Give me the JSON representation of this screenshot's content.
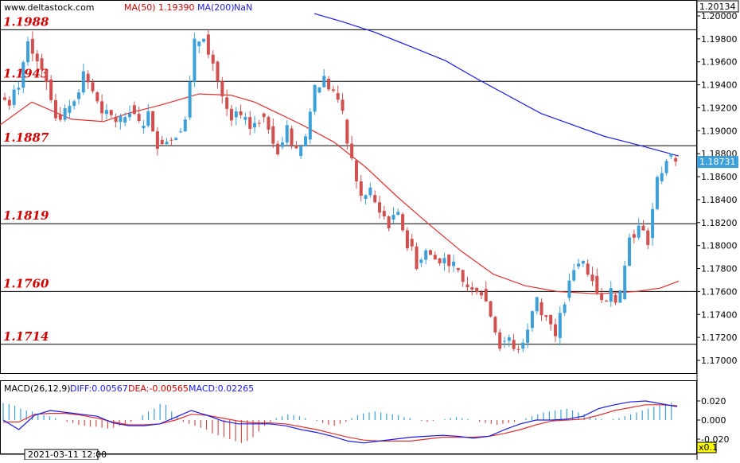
{
  "header": {
    "site": "www.deltastock.com",
    "ma50_label": "MA(50)",
    "ma50_value": "1.19390",
    "ma200_label": "MA(200)",
    "ma200_value": "NaN"
  },
  "price_panel": {
    "top_label": "1.20134",
    "last_price_label": "1.18731",
    "colors": {
      "up": "#3da0d8",
      "down": "#d05050",
      "ma50": "#e03030",
      "ma200": "#1a1aee",
      "level_line": "#000000",
      "level_text": "#d40000"
    }
  },
  "macd_panel": {
    "title": "MACD(26,12,9)",
    "diff_label": "DIFF:0.00567",
    "dea_label": "DEA:-0.00565",
    "macd_label": "MACD:0.02265",
    "corner_label": "x0.1"
  },
  "footer": {
    "date_label": "2021-03-11 12:00"
  },
  "chart_data": [
    {
      "type": "candlestick",
      "title": "",
      "ylim": [
        1.169,
        1.2013
      ],
      "y_ticks": [
        "1.20000",
        "1.19800",
        "1.19600",
        "1.19400",
        "1.19200",
        "1.19000",
        "1.18800",
        "1.18600",
        "1.18400",
        "1.18200",
        "1.18000",
        "1.17800",
        "1.17600",
        "1.17400",
        "1.17200",
        "1.17000"
      ],
      "levels": [
        {
          "label": "1.1988",
          "value": 1.1988
        },
        {
          "label": "1.1943",
          "value": 1.1943
        },
        {
          "label": "1.1887",
          "value": 1.1887
        },
        {
          "label": "1.1819",
          "value": 1.1819
        },
        {
          "label": "1.1760",
          "value": 1.176
        },
        {
          "label": "1.1714",
          "value": 1.1714
        }
      ],
      "last_price": 1.18731,
      "path_close": [
        1.1925,
        1.194,
        1.1982,
        1.1965,
        1.1945,
        1.1915,
        1.1915,
        1.193,
        1.195,
        1.1935,
        1.1912,
        1.1913,
        1.191,
        1.192,
        1.1905,
        1.1915,
        1.189,
        1.1893,
        1.1898,
        1.191,
        1.1975,
        1.1985,
        1.196,
        1.1928,
        1.191,
        1.1912,
        1.1903,
        1.1912,
        1.1905,
        1.1885,
        1.19,
        1.188,
        1.1895,
        1.1935,
        1.1945,
        1.1932,
        1.1912,
        1.1875,
        1.1842,
        1.1845,
        1.183,
        1.182,
        1.1825,
        1.1803,
        1.1785,
        1.1795,
        1.1788,
        1.179,
        1.178,
        1.1767,
        1.1766,
        1.1762,
        1.174,
        1.1715,
        1.1718,
        1.1708,
        1.173,
        1.1752,
        1.174,
        1.1722,
        1.1752,
        1.178,
        1.1785,
        1.1775,
        1.175,
        1.176,
        1.1755,
        1.181,
        1.1815,
        1.1805,
        1.1855,
        1.1875,
        1.1872
      ],
      "ma50": [
        [
          0,
          1.1905
        ],
        [
          40,
          1.1925
        ],
        [
          90,
          1.191
        ],
        [
          130,
          1.1908
        ],
        [
          160,
          1.1915
        ],
        [
          200,
          1.1922
        ],
        [
          250,
          1.1932
        ],
        [
          290,
          1.1931
        ],
        [
          320,
          1.1925
        ],
        [
          350,
          1.1915
        ],
        [
          380,
          1.1905
        ],
        [
          420,
          1.189
        ],
        [
          460,
          1.1868
        ],
        [
          500,
          1.1842
        ],
        [
          540,
          1.1818
        ],
        [
          580,
          1.1795
        ],
        [
          620,
          1.1775
        ],
        [
          660,
          1.1765
        ],
        [
          700,
          1.176
        ],
        [
          750,
          1.1758
        ],
        [
          800,
          1.176
        ],
        [
          830,
          1.1763
        ],
        [
          853,
          1.1769
        ]
      ],
      "ma200": [
        [
          395,
          1.2002
        ],
        [
          430,
          1.1995
        ],
        [
          470,
          1.1986
        ],
        [
          510,
          1.1975
        ],
        [
          560,
          1.1961
        ],
        [
          600,
          1.1945
        ],
        [
          640,
          1.193
        ],
        [
          680,
          1.1915
        ],
        [
          720,
          1.1905
        ],
        [
          760,
          1.1895
        ],
        [
          800,
          1.1888
        ],
        [
          853,
          1.1878
        ]
      ]
    },
    {
      "type": "macd",
      "title": "MACD(26,12,9)",
      "ylim": [
        -0.03,
        0.035
      ],
      "y_ticks": [
        "0.020",
        "0.000",
        "-0.020"
      ],
      "diff": [
        0,
        -10,
        5,
        10,
        8,
        6,
        4,
        -3,
        -6,
        -6,
        -4,
        3,
        10,
        5,
        -1,
        -4,
        -4,
        -4,
        -6,
        -10,
        -13,
        -17,
        -22,
        -24,
        -22,
        -20,
        -18,
        -17,
        -16,
        -17,
        -19,
        -17,
        -10,
        -4,
        0,
        0,
        1,
        4,
        12,
        16,
        19,
        20,
        17,
        14
      ],
      "dea": [
        -2,
        -2,
        6,
        7,
        7,
        5,
        2,
        -2,
        -5,
        -5,
        -4,
        0,
        6,
        5,
        2,
        -1,
        -3,
        -3,
        -4,
        -7,
        -10,
        -14,
        -18,
        -21,
        -22,
        -22,
        -22,
        -20,
        -18,
        -18,
        -18,
        -17,
        -14,
        -10,
        -5,
        -1,
        0,
        1,
        5,
        10,
        13,
        16,
        16,
        15
      ],
      "hist": [
        18,
        17,
        15,
        12,
        10,
        9,
        7,
        5,
        4,
        2,
        0,
        -2,
        -3,
        -5,
        -6,
        -7,
        -7,
        -8,
        -9,
        -8,
        -6,
        -4,
        -2,
        0,
        5,
        9,
        12,
        17,
        16,
        9,
        3,
        -2,
        -4,
        -6,
        -8,
        -10,
        -14,
        -16,
        -18,
        -20,
        -22,
        -24,
        -22,
        -18,
        -12,
        -6,
        -2,
        2,
        4,
        6,
        5,
        4,
        2,
        0,
        -1,
        -3,
        -5,
        -6,
        -4,
        -2,
        2,
        5,
        7,
        8,
        9,
        8,
        7,
        6,
        5,
        3,
        2,
        0,
        -1,
        -2,
        -1,
        0,
        1,
        2,
        3,
        2,
        1,
        0,
        -2,
        -3,
        -4,
        -5,
        -4,
        -3,
        -2,
        0,
        2,
        4,
        6,
        8,
        9,
        10,
        11,
        12,
        10,
        8,
        6,
        4,
        2,
        1,
        0,
        1,
        2,
        4,
        6,
        8,
        10,
        12,
        14,
        16,
        17,
        18
      ]
    }
  ]
}
